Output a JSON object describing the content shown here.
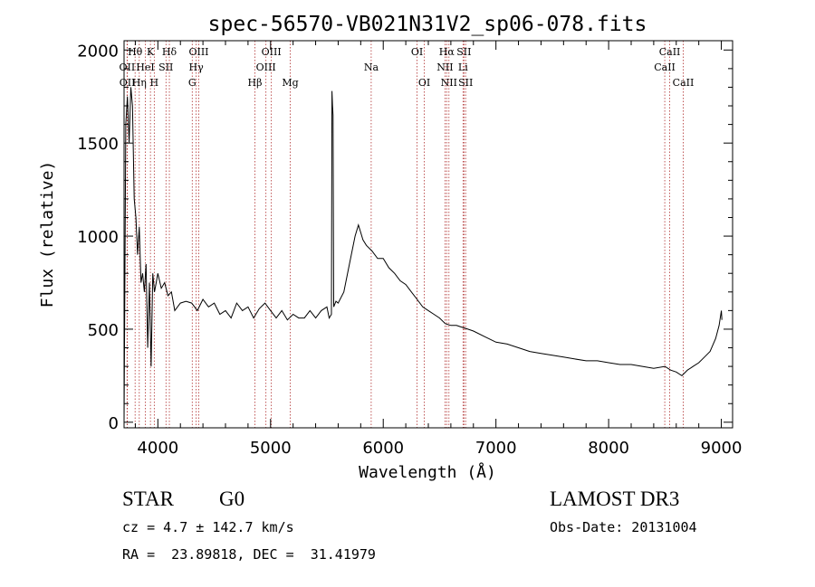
{
  "chart_data": {
    "type": "line",
    "title": "spec-56570-VB021N31V2_sp06-078.fits",
    "xlabel": "Wavelength (Å)",
    "ylabel": "Flux (relative)",
    "xlim": [
      3700,
      9100
    ],
    "ylim": [
      -30,
      2050
    ],
    "xticks": [
      4000,
      5000,
      6000,
      7000,
      8000,
      9000
    ],
    "yticks": [
      0,
      500,
      1000,
      1500,
      2000
    ],
    "grid": false,
    "series": [
      {
        "name": "spectrum",
        "x": [
          3700,
          3715,
          3730,
          3745,
          3760,
          3775,
          3790,
          3805,
          3820,
          3835,
          3850,
          3865,
          3880,
          3895,
          3910,
          3925,
          3940,
          3955,
          3970,
          3985,
          4000,
          4030,
          4060,
          4090,
          4120,
          4150,
          4200,
          4250,
          4300,
          4350,
          4400,
          4450,
          4500,
          4550,
          4600,
          4650,
          4700,
          4750,
          4800,
          4850,
          4900,
          4950,
          5000,
          5050,
          5100,
          5150,
          5200,
          5250,
          5300,
          5350,
          5400,
          5450,
          5500,
          5520,
          5540,
          5545,
          5550,
          5555,
          5560,
          5580,
          5600,
          5650,
          5700,
          5750,
          5780,
          5800,
          5820,
          5850,
          5900,
          5950,
          6000,
          6050,
          6100,
          6150,
          6200,
          6250,
          6300,
          6350,
          6400,
          6450,
          6500,
          6550,
          6600,
          6650,
          6700,
          6750,
          6800,
          6900,
          7000,
          7100,
          7200,
          7300,
          7400,
          7500,
          7600,
          7700,
          7800,
          7900,
          8000,
          8100,
          8200,
          8300,
          8400,
          8500,
          8550,
          8600,
          8650,
          8700,
          8750,
          8800,
          8850,
          8900,
          8950,
          8980,
          9000,
          9005
        ],
        "y": [
          0,
          1600,
          1750,
          1500,
          1800,
          1700,
          1200,
          1100,
          900,
          1050,
          750,
          800,
          700,
          850,
          400,
          750,
          300,
          800,
          700,
          750,
          800,
          720,
          750,
          680,
          700,
          600,
          640,
          650,
          640,
          600,
          660,
          620,
          640,
          580,
          600,
          560,
          640,
          600,
          620,
          560,
          610,
          640,
          600,
          560,
          600,
          550,
          580,
          560,
          560,
          600,
          560,
          600,
          620,
          560,
          580,
          1780,
          1700,
          1650,
          620,
          650,
          640,
          700,
          850,
          1000,
          1060,
          1020,
          980,
          950,
          920,
          880,
          880,
          830,
          800,
          760,
          740,
          700,
          660,
          620,
          600,
          580,
          560,
          530,
          520,
          520,
          510,
          500,
          490,
          460,
          430,
          420,
          400,
          380,
          370,
          360,
          350,
          340,
          330,
          330,
          320,
          310,
          310,
          300,
          290,
          300,
          280,
          270,
          250,
          280,
          300,
          320,
          350,
          380,
          450,
          520,
          600,
          550
        ]
      }
    ],
    "line_markers": [
      {
        "label": "Hθ",
        "x": 3798,
        "row": 1
      },
      {
        "label": "K",
        "x": 3934,
        "row": 1
      },
      {
        "label": "Hδ",
        "x": 4102,
        "row": 1
      },
      {
        "label": "OIII",
        "x": 4363,
        "row": 1
      },
      {
        "label": "OIII",
        "x": 5007,
        "row": 1
      },
      {
        "label": "OI",
        "x": 6300,
        "row": 1
      },
      {
        "label": "Hα",
        "x": 6563,
        "row": 1
      },
      {
        "label": "SII",
        "x": 6716,
        "row": 1
      },
      {
        "label": "CaII",
        "x": 8542,
        "row": 1
      },
      {
        "label": "OII",
        "x": 3727,
        "row": 2
      },
      {
        "label": "HeI",
        "x": 3889,
        "row": 2
      },
      {
        "label": "SII",
        "x": 4072,
        "row": 2
      },
      {
        "label": "Hγ",
        "x": 4340,
        "row": 2
      },
      {
        "label": "OIII",
        "x": 4959,
        "row": 2
      },
      {
        "label": "Na",
        "x": 5893,
        "row": 2
      },
      {
        "label": "NII",
        "x": 6548,
        "row": 2
      },
      {
        "label": "Li",
        "x": 6708,
        "row": 2
      },
      {
        "label": "CaII",
        "x": 8498,
        "row": 2
      },
      {
        "label": "OII",
        "x": 3729,
        "row": 3
      },
      {
        "label": "Hη",
        "x": 3835,
        "row": 3
      },
      {
        "label": "H",
        "x": 3968,
        "row": 3
      },
      {
        "label": "G",
        "x": 4305,
        "row": 3
      },
      {
        "label": "Hβ",
        "x": 4861,
        "row": 3
      },
      {
        "label": "Mg",
        "x": 5175,
        "row": 3
      },
      {
        "label": "OI",
        "x": 6364,
        "row": 3
      },
      {
        "label": "NII",
        "x": 6583,
        "row": 3
      },
      {
        "label": "SII",
        "x": 6731,
        "row": 3
      },
      {
        "label": "CaII",
        "x": 8662,
        "row": 3
      }
    ]
  },
  "info": {
    "object_class": "STAR",
    "subclass": "G0",
    "survey": "LAMOST DR3",
    "redshift": "cz = 4.7 ± 142.7 km/s",
    "obs_date": "Obs-Date: 20131004",
    "coords": "RA =  23.89818, DEC =  31.41979"
  }
}
